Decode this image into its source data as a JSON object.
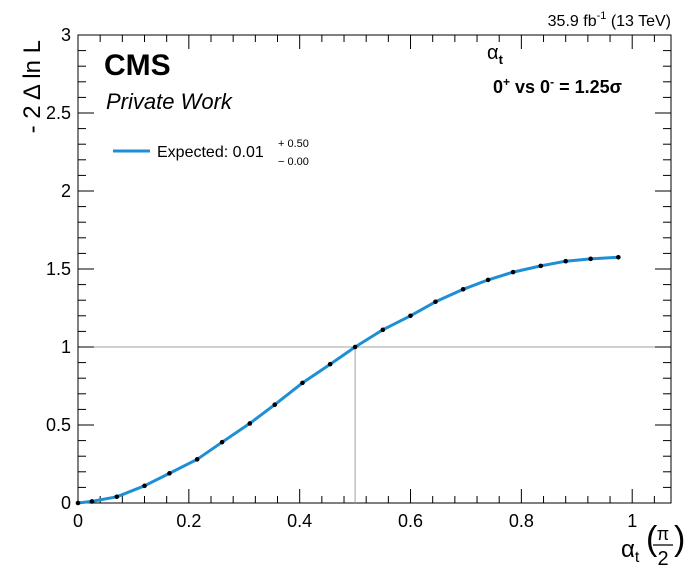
{
  "header": {
    "lumi_value": "35.9 fb",
    "lumi_exp": "-1",
    "energy": " (13 TeV)"
  },
  "cms_label": "CMS",
  "private_label": "Private Work",
  "param_symbol": "α",
  "param_sub": "t",
  "hypothesis": {
    "part1": "0",
    "sup1": "+",
    "part2": " vs 0",
    "sup2": "-",
    "part3": " =  1.25σ"
  },
  "legend": {
    "label": "Expected: 0.01",
    "up": "+ 0.50",
    "down": "− 0.00"
  },
  "colors": {
    "curve": "#1f8fd5",
    "points": "#000000",
    "crossing": "#a0a0a0"
  },
  "chart_data": {
    "type": "line",
    "title": "",
    "xlabel": {
      "main": "α",
      "sub": "t",
      "frac_num": "π",
      "frac_den": "2"
    },
    "ylabel": "- 2 Δ ln L",
    "xlim": [
      0,
      1.07
    ],
    "ylim": [
      0,
      3
    ],
    "x_ticks": [
      "0",
      "0.2",
      "0.4",
      "0.6",
      "0.8",
      "1"
    ],
    "x_tick_values": [
      0,
      0.2,
      0.4,
      0.6,
      0.8,
      1
    ],
    "y_ticks": [
      "0",
      "0.5",
      "1",
      "1.5",
      "2",
      "2.5",
      "3"
    ],
    "y_tick_values": [
      0,
      0.5,
      1,
      1.5,
      2,
      2.5,
      3
    ],
    "grid": false,
    "legend_position": "top-left",
    "crossing": {
      "x": 0.5,
      "y": 1
    },
    "series": [
      {
        "name": "Expected: 0.01",
        "x": [
          0,
          0.025,
          0.07,
          0.12,
          0.165,
          0.215,
          0.26,
          0.31,
          0.355,
          0.405,
          0.455,
          0.5,
          0.55,
          0.6,
          0.645,
          0.695,
          0.74,
          0.785,
          0.835,
          0.88,
          0.925,
          0.975
        ],
        "y": [
          0.0,
          0.01,
          0.04,
          0.11,
          0.19,
          0.28,
          0.39,
          0.51,
          0.63,
          0.77,
          0.89,
          1.0,
          1.11,
          1.2,
          1.29,
          1.37,
          1.43,
          1.48,
          1.52,
          1.55,
          1.565,
          1.575
        ]
      }
    ]
  }
}
